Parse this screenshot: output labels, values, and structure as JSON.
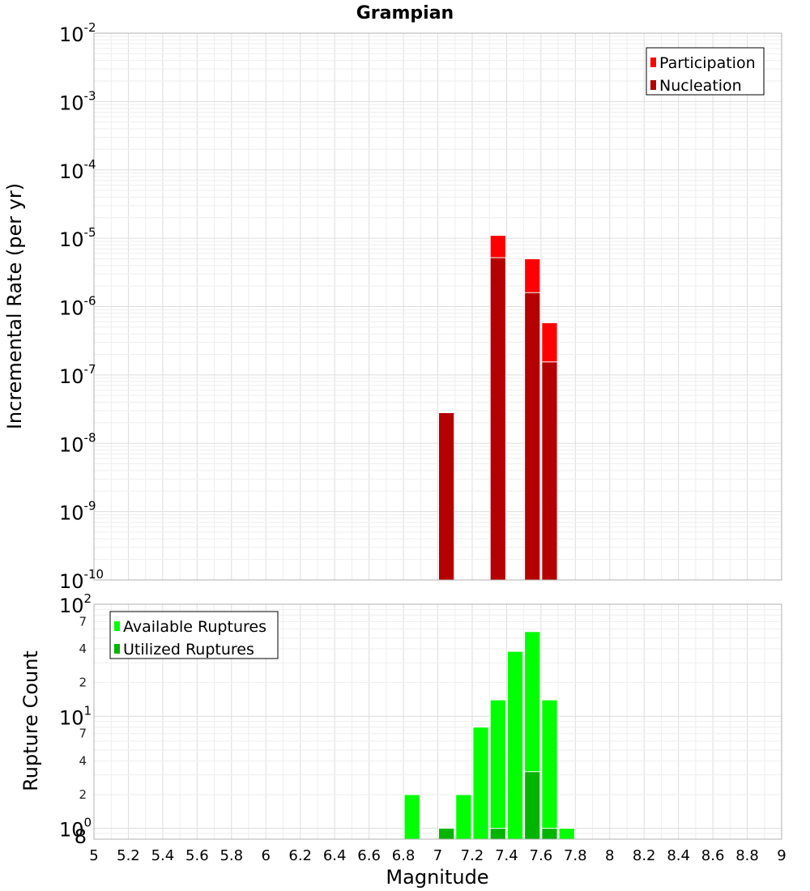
{
  "chart_data": [
    {
      "type": "bar",
      "title": "Grampian",
      "xlabel": "",
      "ylabel": "Incremental Rate (per yr)",
      "y_scale": "log",
      "xlim": [
        5,
        9
      ],
      "ylim": [
        1e-10,
        0.01
      ],
      "y_ticks": [
        {
          "base": "10",
          "exp": "-2"
        },
        {
          "base": "10",
          "exp": "-3"
        },
        {
          "base": "10",
          "exp": "-4"
        },
        {
          "base": "10",
          "exp": "-5"
        },
        {
          "base": "10",
          "exp": "-6"
        },
        {
          "base": "10",
          "exp": "-7"
        },
        {
          "base": "10",
          "exp": "-8"
        },
        {
          "base": "10",
          "exp": "-9"
        },
        {
          "base": "10",
          "exp": "-10"
        }
      ],
      "legend_position": "top-right",
      "grid": true,
      "series": [
        {
          "name": "Participation",
          "color": "#ff0000",
          "x": [
            7.35,
            7.55,
            7.65
          ],
          "values": [
            1.1e-05,
            5e-06,
            5.8e-07
          ]
        },
        {
          "name": "Nucleation",
          "color": "#b40000",
          "x": [
            7.05,
            7.35,
            7.55,
            7.65
          ],
          "values": [
            2.8e-08,
            5.2e-06,
            1.6e-06,
            1.55e-07
          ]
        }
      ]
    },
    {
      "type": "bar",
      "title": "",
      "xlabel": "Magnitude",
      "ylabel": "Rupture Count",
      "y_scale": "log",
      "xlim": [
        5,
        9
      ],
      "ylim": [
        0.8,
        100
      ],
      "x_ticks": [
        "5",
        "5.2",
        "5.4",
        "5.6",
        "5.8",
        "6",
        "6.2",
        "6.4",
        "6.6",
        "6.8",
        "7",
        "7.2",
        "7.4",
        "7.6",
        "7.8",
        "8",
        "8.2",
        "8.4",
        "8.6",
        "8.8",
        "9"
      ],
      "y_ticks": [
        {
          "base": "10",
          "exp": "2"
        },
        {
          "base": "10",
          "exp": "1"
        },
        {
          "base": "10",
          "exp": "0"
        }
      ],
      "y_minor_ticks": [
        {
          "label": "7",
          "value": 70
        },
        {
          "label": "4",
          "value": 40
        },
        {
          "label": "2",
          "value": 20
        },
        {
          "label": "7",
          "value": 7
        },
        {
          "label": "4",
          "value": 4
        },
        {
          "label": "2",
          "value": 2
        },
        {
          "label": "8",
          "value": 0.8
        }
      ],
      "legend_position": "top-left",
      "grid": true,
      "series": [
        {
          "name": "Available Ruptures",
          "color": "#00ff00",
          "x": [
            6.85,
            7.15,
            7.25,
            7.35,
            7.45,
            7.55,
            7.65,
            7.75
          ],
          "values": [
            2,
            2,
            8,
            14,
            38,
            57,
            14,
            1
          ]
        },
        {
          "name": "Utilized Ruptures",
          "color": "#00b400",
          "x": [
            7.05,
            7.35,
            7.55,
            7.65
          ],
          "values": [
            1,
            1,
            3.2,
            1
          ]
        }
      ]
    }
  ]
}
